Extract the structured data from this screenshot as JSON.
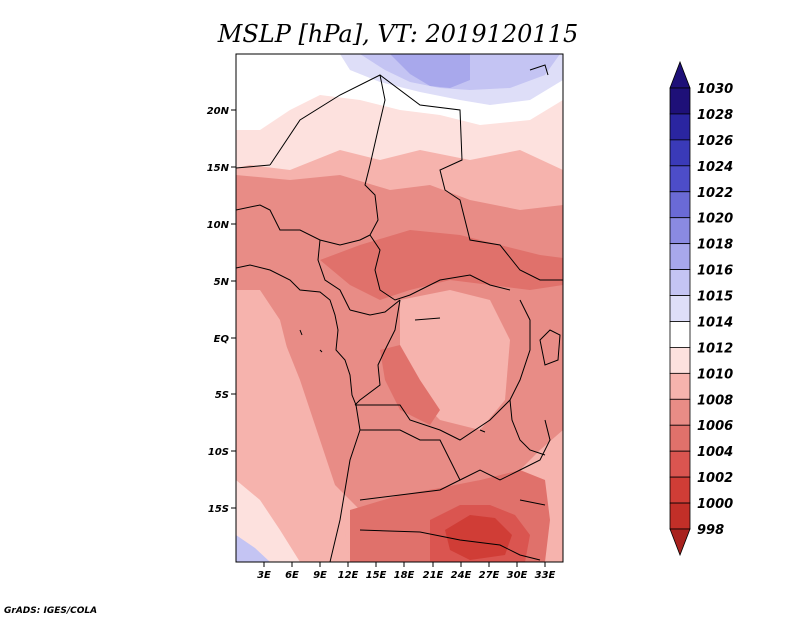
{
  "title": "MSLP [hPa], VT: 2019120115",
  "credit": "GrADS: IGES/COLA",
  "map": {
    "lat_ticks": [
      "20N",
      "15N",
      "10N",
      "5N",
      "EQ",
      "5S",
      "10S",
      "15S"
    ],
    "lon_ticks": [
      "3E",
      "6E",
      "9E",
      "12E",
      "15E",
      "18E",
      "21E",
      "24E",
      "27E",
      "30E",
      "33E"
    ]
  },
  "colorbar": {
    "labels": [
      "1030",
      "1028",
      "1026",
      "1024",
      "1022",
      "1020",
      "1018",
      "1016",
      "1015",
      "1014",
      "1012",
      "1010",
      "1008",
      "1006",
      "1004",
      "1002",
      "1000",
      "998"
    ],
    "colors": [
      "#1e1078",
      "#2a25a0",
      "#3a3ab8",
      "#4d4dc8",
      "#6a6ad6",
      "#8a8ae2",
      "#a8a8ec",
      "#c4c4f3",
      "#dedef8",
      "#ffffff",
      "#fde1de",
      "#f6b3ad",
      "#e88c86",
      "#e0716b",
      "#da5550",
      "#d03d36",
      "#c22f28",
      "#a8221e"
    ]
  }
}
